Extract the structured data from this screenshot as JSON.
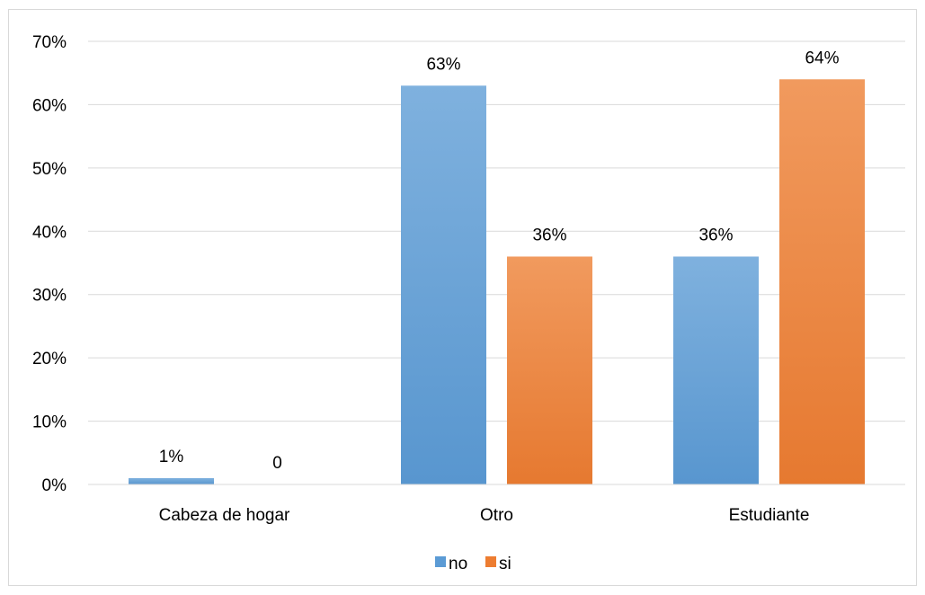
{
  "chart_data": {
    "type": "bar",
    "categories": [
      "Cabeza de hogar",
      "Otro",
      "Estudiante"
    ],
    "series": [
      {
        "name": "no",
        "values": [
          0.01,
          0.63,
          0.36
        ],
        "labels": [
          "1%",
          "63%",
          "36%"
        ],
        "color": "#5B9BD5"
      },
      {
        "name": "si",
        "values": [
          0,
          0.36,
          0.64
        ],
        "labels": [
          "0",
          "36%",
          "64%"
        ],
        "color": "#ED7D31"
      }
    ],
    "ylim": [
      0,
      0.7
    ],
    "yticks": [
      {
        "value": 0,
        "label": "0%"
      },
      {
        "value": 0.1,
        "label": "10%"
      },
      {
        "value": 0.2,
        "label": "20%"
      },
      {
        "value": 0.3,
        "label": "30%"
      },
      {
        "value": 0.4,
        "label": "40%"
      },
      {
        "value": 0.5,
        "label": "50%"
      },
      {
        "value": 0.6,
        "label": "60%"
      },
      {
        "value": 0.7,
        "label": "70%"
      }
    ],
    "grid": true,
    "legend_position": "bottom"
  }
}
